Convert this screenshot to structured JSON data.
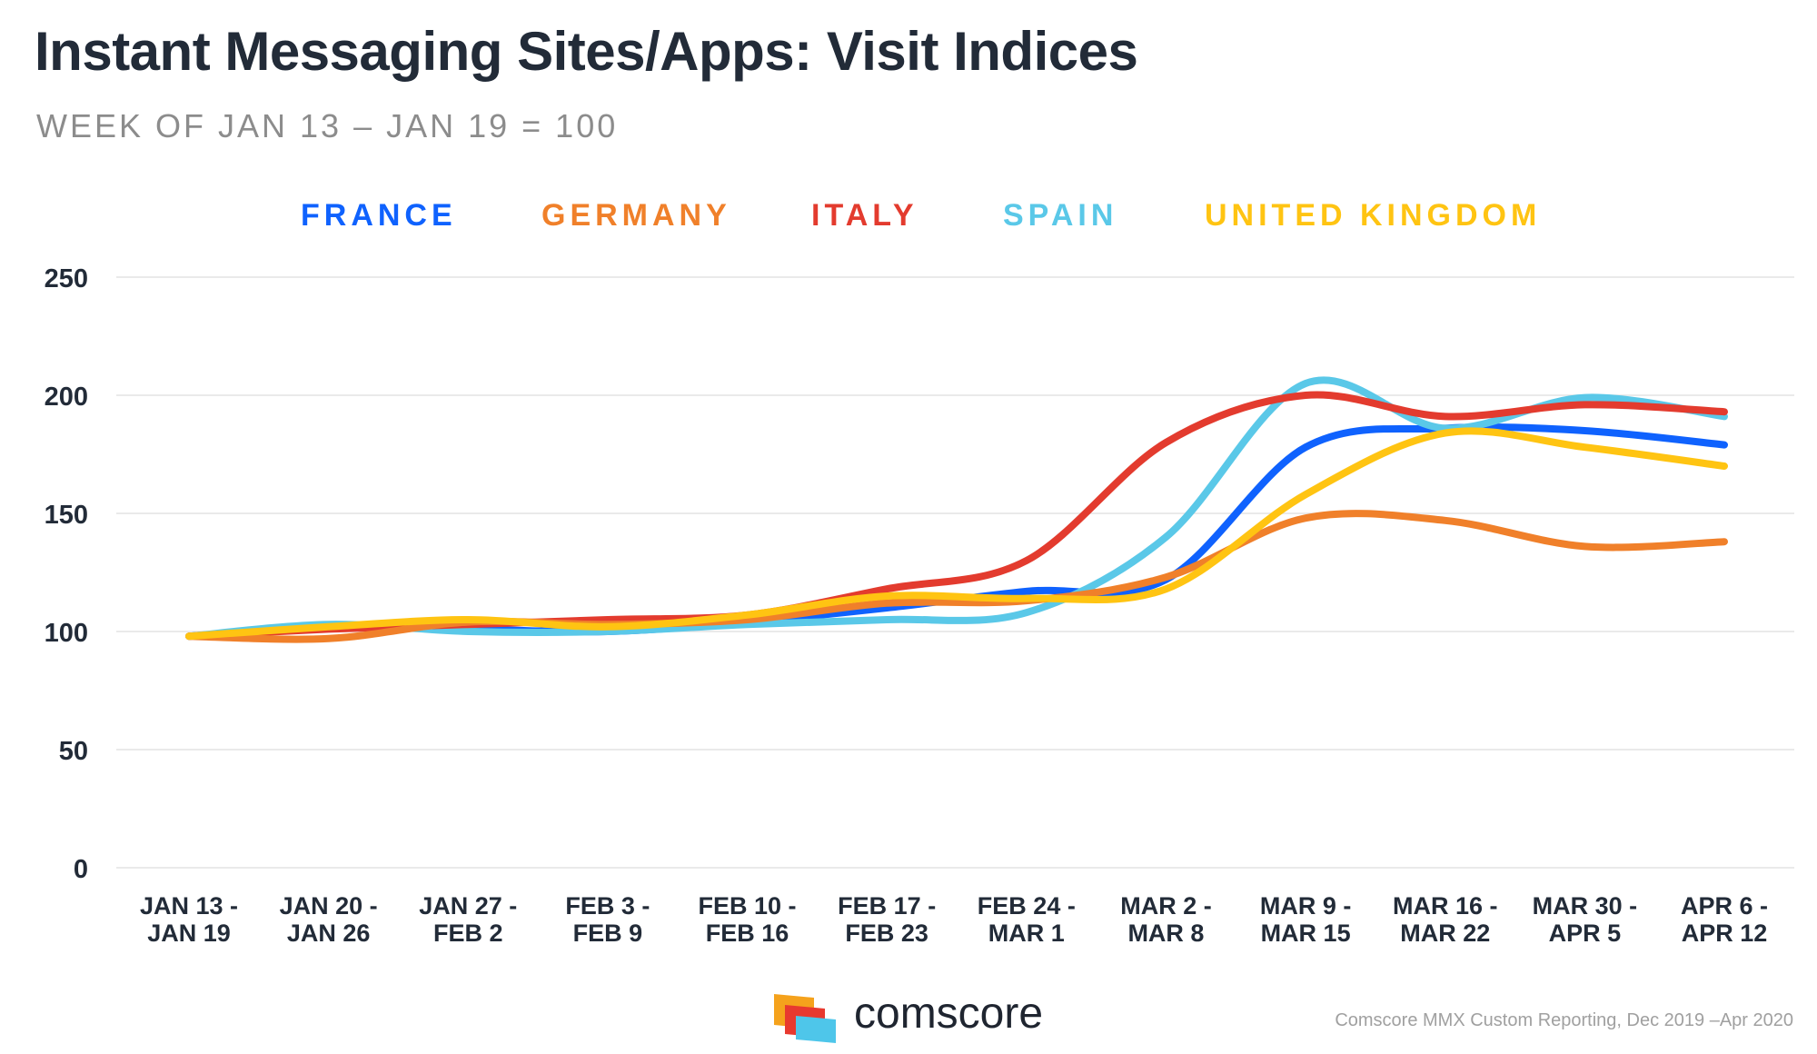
{
  "chart_data": {
    "type": "line",
    "title": "Instant Messaging Sites/Apps: Visit Indices",
    "subtitle": "WEEK OF JAN 13 – JAN 19 = 100",
    "categories": [
      [
        "JAN 13 -",
        "JAN 19"
      ],
      [
        "JAN 20 -",
        "JAN 26"
      ],
      [
        "JAN 27 -",
        "FEB 2"
      ],
      [
        "FEB 3 -",
        "FEB 9"
      ],
      [
        "FEB 10 -",
        "FEB 16"
      ],
      [
        "FEB 17 -",
        "FEB 23"
      ],
      [
        "FEB 24 -",
        "MAR 1"
      ],
      [
        "MAR 2 -",
        "MAR 8"
      ],
      [
        "MAR 9 -",
        "MAR 15"
      ],
      [
        "MAR 16 -",
        "MAR 22"
      ],
      [
        "MAR 30 -",
        "APR 5"
      ],
      [
        "APR 6 -",
        "APR 12"
      ]
    ],
    "ylim": [
      0,
      250
    ],
    "yticks": [
      0,
      50,
      100,
      150,
      200,
      250
    ],
    "grid": true,
    "legend_position": "top",
    "series": [
      {
        "name": "FRANCE",
        "color": "#0f62fe",
        "values": [
          98,
          102,
          101,
          100,
          104,
          110,
          117,
          122,
          178,
          186,
          185,
          179
        ]
      },
      {
        "name": "GERMANY",
        "color": "#f0802a",
        "values": [
          98,
          97,
          104,
          103,
          105,
          112,
          113,
          123,
          148,
          147,
          136,
          138
        ]
      },
      {
        "name": "ITALY",
        "color": "#e33b2e",
        "values": [
          98,
          101,
          103,
          105,
          107,
          118,
          130,
          180,
          200,
          191,
          196,
          193
        ]
      },
      {
        "name": "SPAIN",
        "color": "#5ac8e8",
        "values": [
          98,
          103,
          100,
          100,
          103,
          105,
          108,
          140,
          205,
          186,
          199,
          191
        ]
      },
      {
        "name": "UNITED KINGDOM",
        "color": "#ffc412",
        "values": [
          98,
          102,
          105,
          102,
          107,
          115,
          114,
          118,
          158,
          184,
          178,
          170
        ]
      }
    ]
  },
  "branding": {
    "logo_text": "comscore",
    "source": "Comscore MMX Custom Reporting, Dec 2019 –Apr 2020"
  }
}
